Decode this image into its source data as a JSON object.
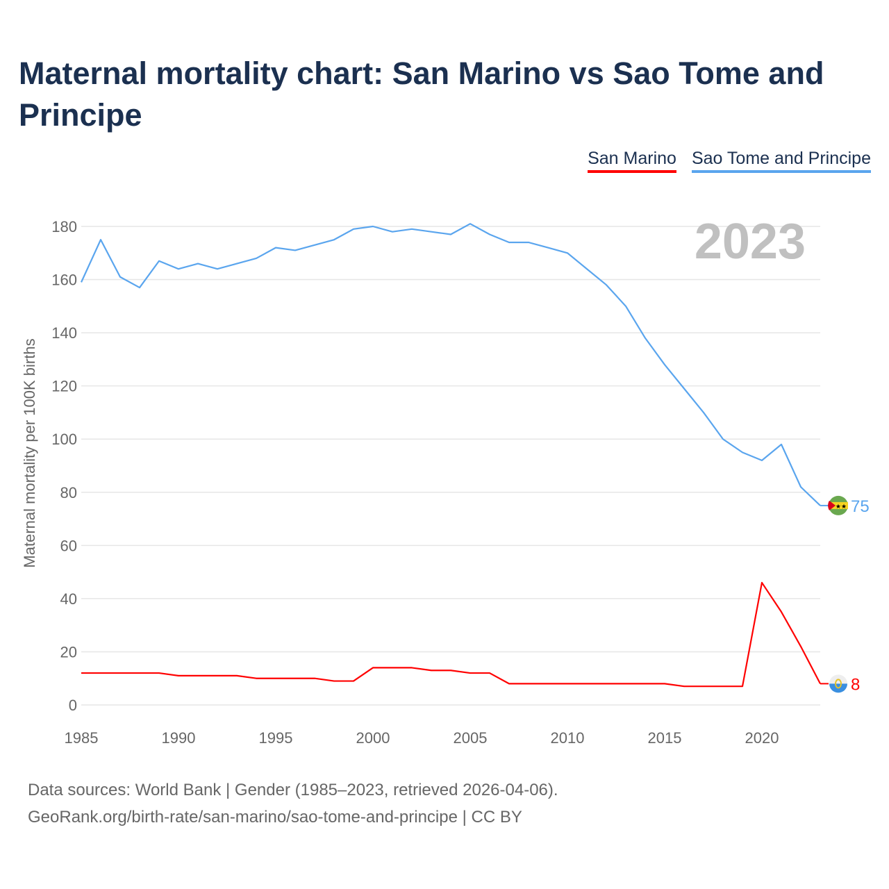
{
  "title": "Maternal mortality chart: San Marino vs Sao Tome and Principe",
  "footer": {
    "line1": "Data sources: World Bank | Gender (1985–2023, retrieved 2026-04-06).",
    "line2": "GeoRank.org/birth-rate/san-marino/sao-tome-and-principe | CC BY"
  },
  "chart_data": {
    "type": "line",
    "title": "Maternal mortality chart: San Marino vs Sao Tome and Principe",
    "ylabel": "Maternal mortality per 100K births",
    "xlabel": "",
    "year_label": "2023",
    "xlim": [
      1985,
      2023
    ],
    "ylim": [
      0,
      180
    ],
    "xticks": [
      1985,
      1990,
      1995,
      2000,
      2005,
      2010,
      2015,
      2020
    ],
    "yticks": [
      0,
      20,
      40,
      60,
      80,
      100,
      120,
      140,
      160,
      180
    ],
    "grid": true,
    "legend_position": "top-right",
    "x": [
      1985,
      1986,
      1987,
      1988,
      1989,
      1990,
      1991,
      1992,
      1993,
      1994,
      1995,
      1996,
      1997,
      1998,
      1999,
      2000,
      2001,
      2002,
      2003,
      2004,
      2005,
      2006,
      2007,
      2008,
      2009,
      2010,
      2011,
      2012,
      2013,
      2014,
      2015,
      2016,
      2017,
      2018,
      2019,
      2020,
      2021,
      2022,
      2023
    ],
    "series": [
      {
        "name": "San Marino",
        "color": "#ff0000",
        "end_label": "8",
        "values": [
          12,
          12,
          12,
          12,
          12,
          11,
          11,
          11,
          11,
          10,
          10,
          10,
          10,
          9,
          9,
          14,
          14,
          14,
          13,
          13,
          12,
          12,
          8,
          8,
          8,
          8,
          8,
          8,
          8,
          8,
          8,
          7,
          7,
          7,
          7,
          46,
          35,
          22,
          8
        ]
      },
      {
        "name": "Sao Tome and Principe",
        "color": "#5aa5ee",
        "end_label": "75",
        "values": [
          159,
          175,
          161,
          157,
          167,
          164,
          166,
          164,
          166,
          168,
          172,
          171,
          173,
          175,
          179,
          180,
          178,
          179,
          178,
          177,
          181,
          177,
          174,
          174,
          172,
          170,
          164,
          158,
          150,
          138,
          128,
          119,
          110,
          100,
          95,
          92,
          98,
          82,
          75
        ]
      }
    ]
  }
}
